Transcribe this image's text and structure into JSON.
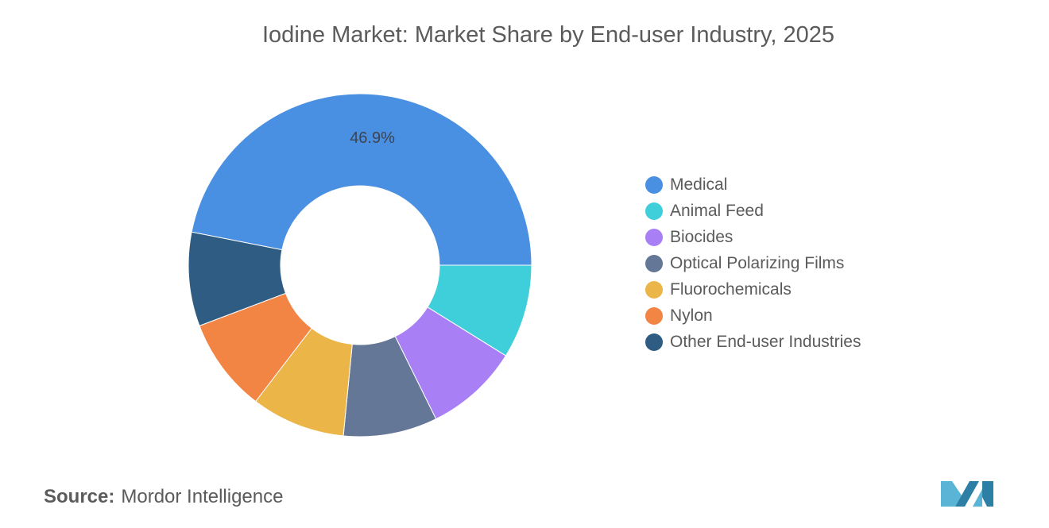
{
  "title": "Iodine Market: Market Share by End-user Industry, 2025",
  "source": {
    "label": "Source:",
    "value": "Mordor Intelligence"
  },
  "logo": {
    "icon": "mordor-intelligence-logo-icon",
    "colors": [
      "#5ab4d6",
      "#2d7fa6"
    ]
  },
  "chart_data": {
    "type": "pie",
    "donut": true,
    "title": "Iodine Market: Market Share by End-user Industry, 2025",
    "legend_position": "right",
    "slices": [
      {
        "label": "Medical",
        "value": 46.9,
        "color": "#4a90e2",
        "data_label": "46.9%"
      },
      {
        "label": "Animal Feed",
        "value": 8.85,
        "color": "#3fcfda"
      },
      {
        "label": "Biocides",
        "value": 8.85,
        "color": "#a87ff5"
      },
      {
        "label": "Optical Polarizing Films",
        "value": 8.85,
        "color": "#647797"
      },
      {
        "label": "Fluorochemicals",
        "value": 8.85,
        "color": "#ebb548"
      },
      {
        "label": "Nylon",
        "value": 8.85,
        "color": "#f28444"
      },
      {
        "label": "Other End-user Industries",
        "value": 8.85,
        "color": "#2e5c82"
      }
    ]
  }
}
